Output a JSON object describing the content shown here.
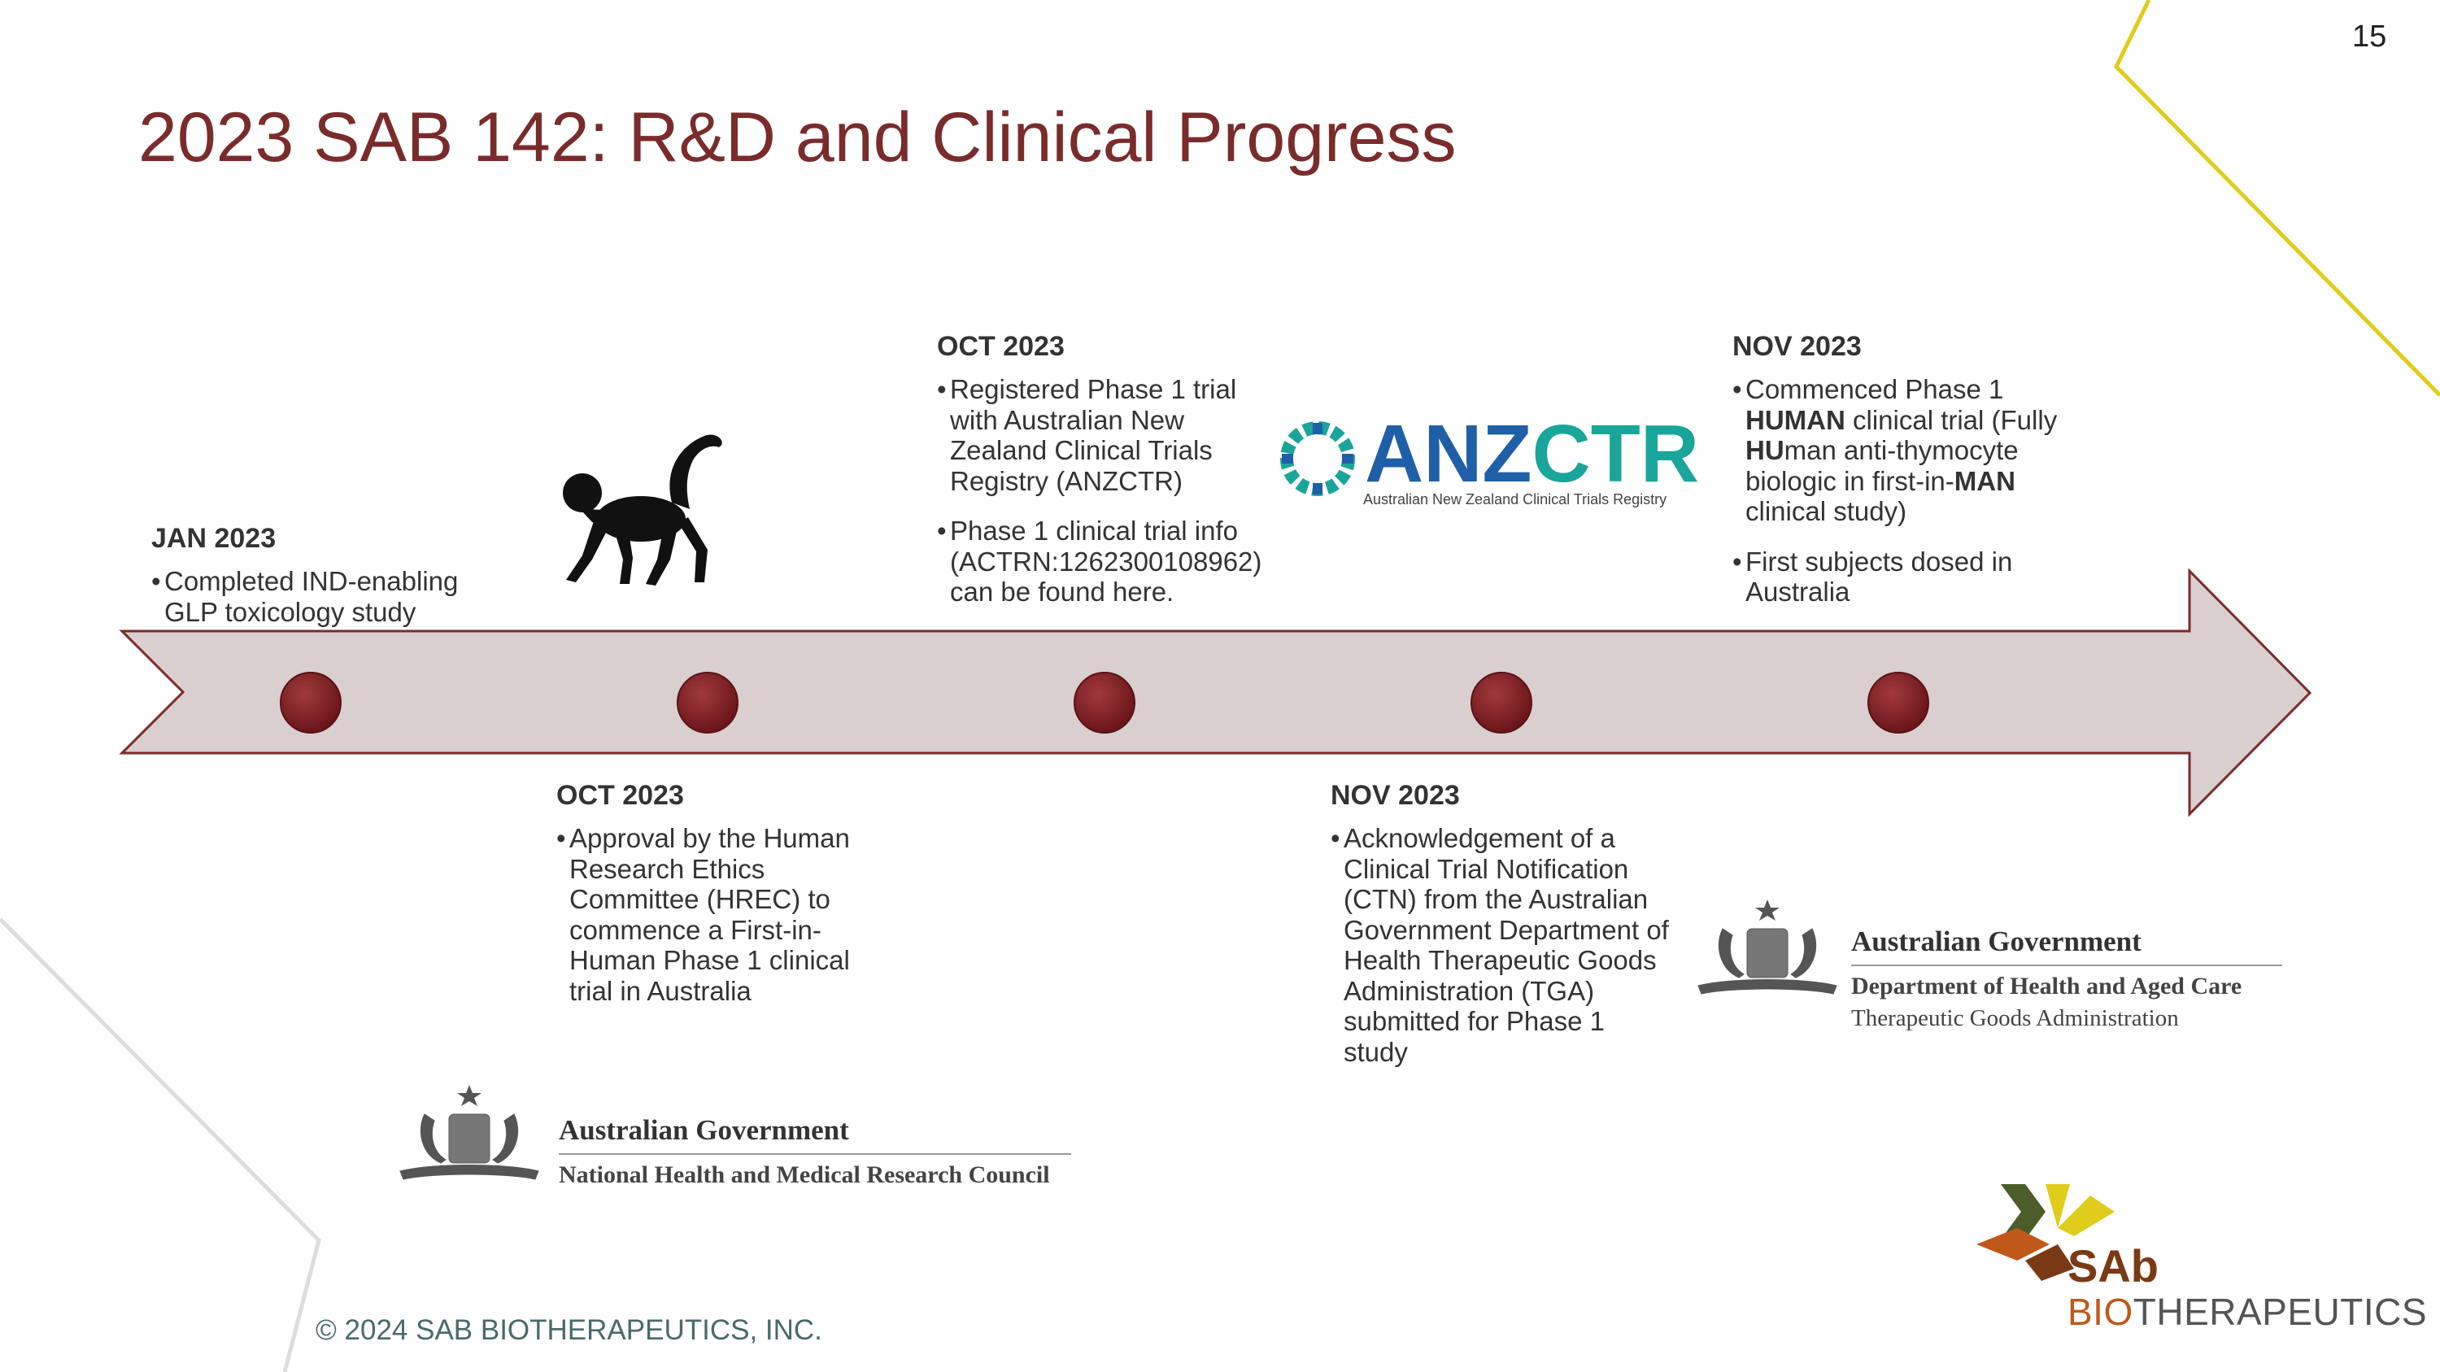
{
  "slide": {
    "title": "2023 SAB 142: R&D and Clinical Progress",
    "page_number": "15",
    "footer": "© 2024 SAB BIOTHERAPEUTICS, INC."
  },
  "timeline": [
    {
      "date": "JAN 2023",
      "bullets": [
        "Completed IND-enabling GLP toxicology study"
      ]
    },
    {
      "date": "OCT 2023",
      "bullets": [
        "Approval by the Human Research Ethics Committee (HREC) to commence a First-in-Human Phase 1 clinical trial in Australia"
      ]
    },
    {
      "date": "OCT 2023",
      "bullets": [
        "Registered Phase 1 trial with Australian New Zealand Clinical Trials Registry (ANZCTR)",
        "Phase 1 clinical trial info (ACTRN:1262300108962) can be found here."
      ]
    },
    {
      "date": "NOV 2023",
      "bullets": [
        "Acknowledgement of a Clinical Trial Notification (CTN) from the Australian Government Department of Health Therapeutic Goods Administration (TGA) submitted for Phase 1 study"
      ]
    },
    {
      "date": "NOV 2023",
      "bullets_rich": [
        {
          "p1": "Commenced Phase 1 ",
          "b1": "HUMAN",
          "p2": " clinical trial (Fully ",
          "b2": "HU",
          "p3": "man anti-thymocyte biologic in first-in-",
          "b3": "MAN",
          "p4": " clinical study)"
        }
      ],
      "bullets": [
        "First subjects dosed in Australia"
      ]
    }
  ],
  "logos": {
    "anzctr": {
      "name_part1": "ANZ",
      "name_part2": "CTR",
      "tagline": "Australian New Zealand Clinical Trials Registry"
    },
    "nhmrc": {
      "line1": "Australian Government",
      "line2": "National Health and Medical Research Council"
    },
    "tga": {
      "line1": "Australian Government",
      "line2": "Department of Health and Aged Care",
      "line3": "Therapeutic Goods Administration"
    },
    "sab": {
      "mark": "SAb",
      "word_part1": "BIO",
      "word_part2": "THERAPEUTICS"
    }
  },
  "colors": {
    "title": "#7a2b2b",
    "arrow_fill": "#d9cfcf",
    "arrow_stroke": "#7a2b2b",
    "marker": "#7a1f23",
    "accent_yellow": "#e0cc1a",
    "anzctr_blue": "#1f5fa8",
    "anzctr_teal": "#1aa59a",
    "sab_orange": "#c0581a"
  }
}
